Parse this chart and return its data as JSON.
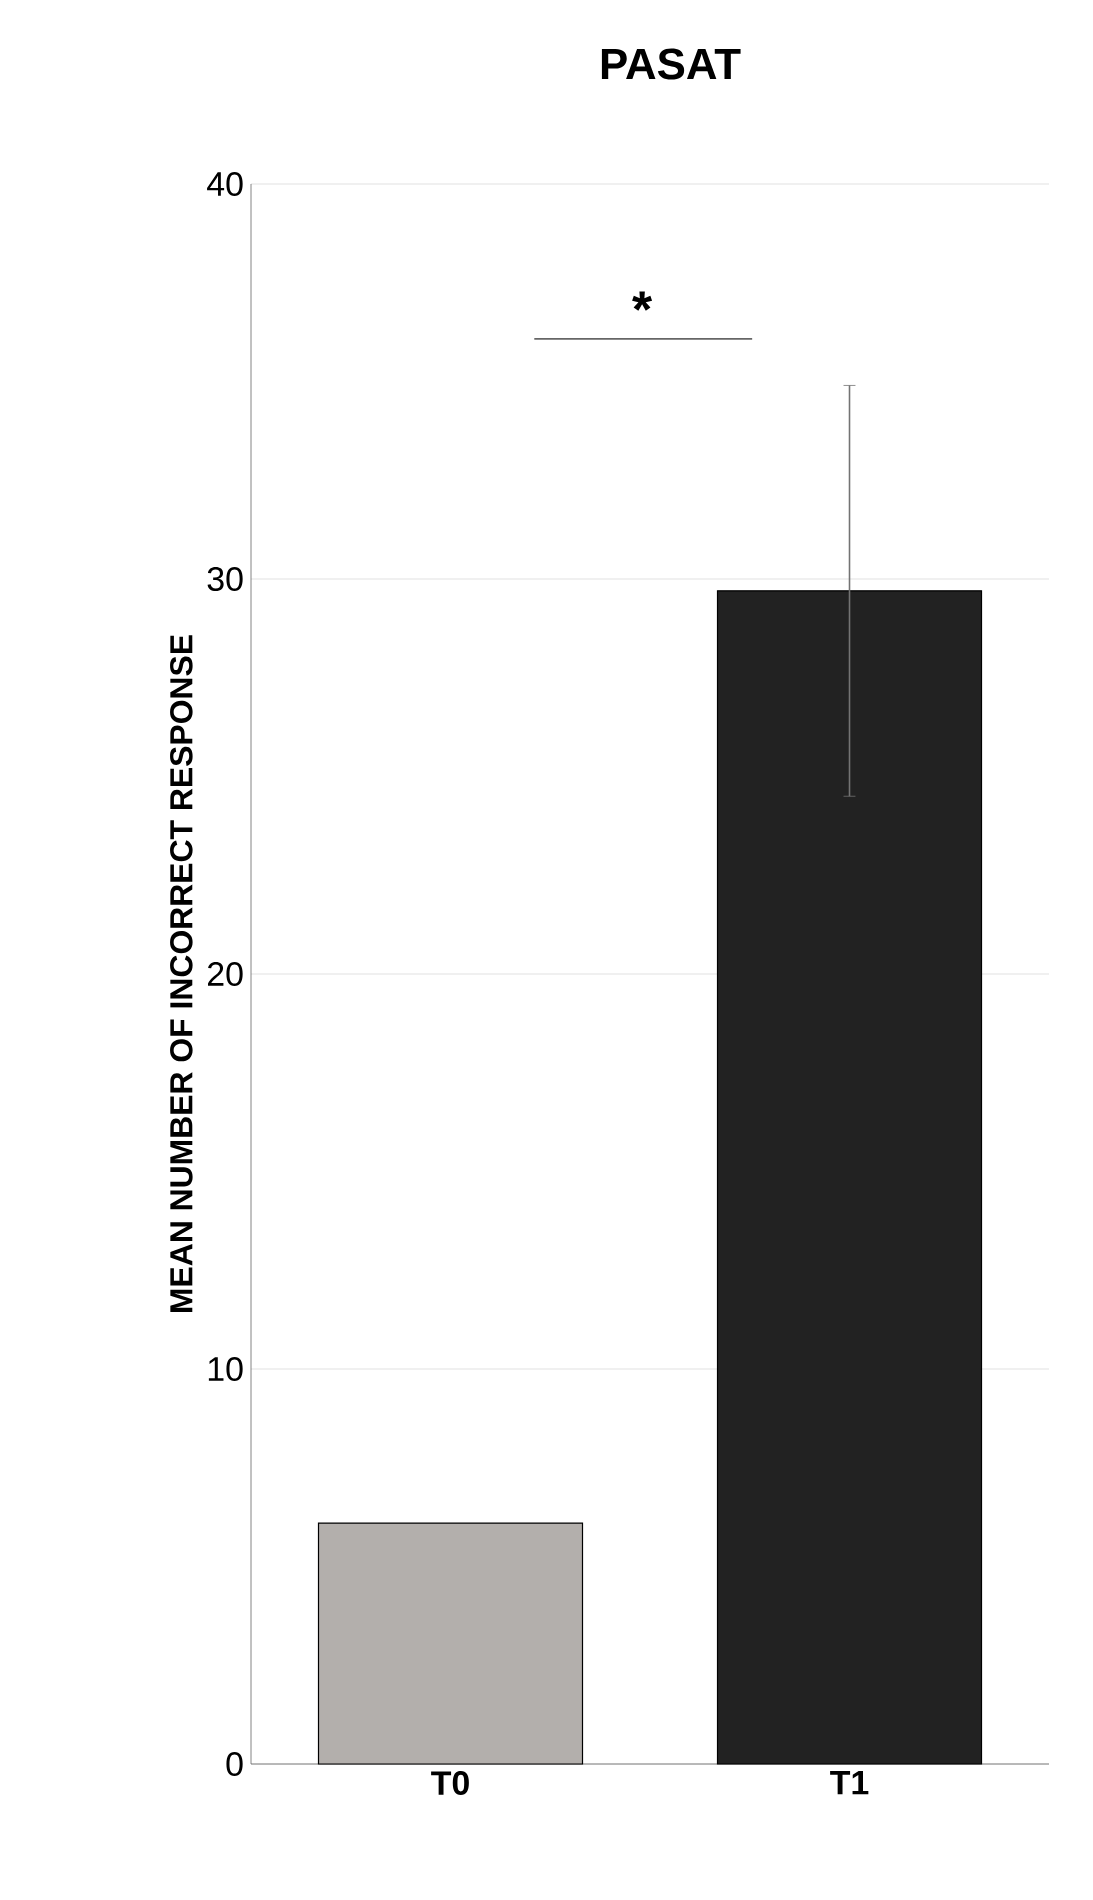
{
  "chart_data": {
    "type": "bar",
    "title": "PASAT",
    "ylabel": "MEAN NUMBER OF INCORRECT RESPONSE",
    "categories": [
      "T0",
      "T1"
    ],
    "values": [
      6.1,
      29.7
    ],
    "colors": [
      "#b3afac",
      "#222222"
    ],
    "errors": [
      null,
      5.2
    ],
    "ylim": [
      0,
      40
    ],
    "yticks": [
      0,
      10,
      20,
      30,
      40
    ],
    "grid": "y",
    "annotations": [
      "*"
    ]
  }
}
